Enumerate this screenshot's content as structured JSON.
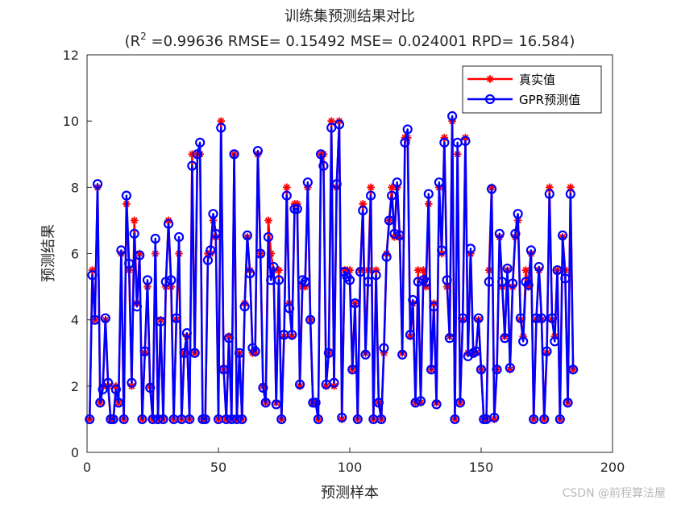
{
  "chart_data": {
    "type": "line",
    "title": "训练集预测结果对比",
    "subtitle": {
      "prefix": "(R",
      "sup": "2",
      "rest": " =0.99636 RMSE= 0.15492 MSE= 0.024001 RPD= 16.584)"
    },
    "xlabel": "预测样本",
    "ylabel": "预测结果",
    "xlim": [
      0,
      200
    ],
    "ylim": [
      0,
      12
    ],
    "xticks": [
      0,
      50,
      100,
      150,
      200
    ],
    "yticks": [
      0,
      2,
      4,
      6,
      8,
      10,
      12
    ],
    "grid": false,
    "legend_position": "top-right",
    "series": [
      {
        "name": "真实值",
        "color": "#ff0000",
        "marker": "asterisk",
        "values": [
          1.0,
          5.5,
          4.0,
          8.0,
          1.5,
          2.0,
          4.0,
          2.0,
          1.0,
          1.0,
          2.0,
          1.5,
          6.0,
          1.0,
          7.5,
          5.5,
          2.0,
          7.0,
          4.5,
          6.0,
          1.0,
          3.0,
          5.0,
          2.0,
          1.0,
          6.0,
          1.0,
          4.0,
          1.0,
          5.0,
          7.0,
          5.0,
          1.0,
          4.0,
          6.0,
          1.0,
          3.0,
          3.5,
          1.0,
          9.0,
          3.0,
          9.0,
          9.0,
          1.0,
          1.0,
          6.0,
          6.0,
          7.0,
          6.5,
          1.0,
          10.0,
          2.5,
          1.0,
          3.5,
          1.0,
          9.0,
          1.0,
          3.0,
          1.0,
          4.5,
          6.5,
          5.5,
          3.0,
          3.0,
          9.0,
          6.0,
          2.0,
          1.5,
          7.0,
          6.0,
          5.5,
          1.5,
          5.5,
          1.0,
          3.5,
          8.0,
          4.5,
          3.5,
          7.5,
          7.5,
          2.0,
          5.0,
          5.0,
          8.0,
          4.0,
          1.5,
          1.5,
          1.0,
          9.0,
          9.0,
          2.0,
          3.0,
          10.0,
          2.0,
          8.0,
          10.0,
          1.0,
          5.5,
          5.5,
          5.5,
          2.5,
          4.5,
          1.0,
          5.5,
          7.5,
          3.0,
          5.5,
          8.0,
          1.0,
          5.5,
          1.5,
          1.0,
          3.0,
          6.0,
          7.0,
          8.0,
          6.5,
          8.0,
          6.5,
          3.0,
          9.5,
          9.5,
          3.5,
          4.5,
          1.5,
          5.5,
          1.5,
          5.5,
          5.0,
          7.5,
          2.5,
          4.5,
          1.5,
          8.0,
          6.0,
          9.5,
          5.0,
          3.5,
          10.0,
          1.0,
          9.0,
          1.5,
          4.0,
          9.5,
          3.0,
          6.0,
          3.0,
          3.0,
          4.0,
          2.5,
          1.0,
          1.0,
          5.5,
          8.0,
          1.0,
          2.5,
          6.5,
          5.0,
          3.5,
          5.5,
          2.5,
          5.0,
          6.5,
          7.0,
          4.0,
          3.5,
          5.5,
          5.0,
          6.0,
          1.0,
          4.0,
          5.5,
          4.0,
          1.0,
          3.0,
          8.0,
          4.0,
          3.5,
          5.5,
          1.0,
          6.5,
          5.5,
          1.5,
          8.0,
          2.5
        ]
      },
      {
        "name": "GPR预测值",
        "color": "#0000ff",
        "marker": "circle",
        "values": [
          1.0,
          5.35,
          4.0,
          8.1,
          1.5,
          1.9,
          4.05,
          2.1,
          1.0,
          1.0,
          1.9,
          1.5,
          6.1,
          1.0,
          7.75,
          5.7,
          2.1,
          6.6,
          4.4,
          5.95,
          1.0,
          3.05,
          5.2,
          1.95,
          1.0,
          6.45,
          1.0,
          3.95,
          1.0,
          5.15,
          6.9,
          5.2,
          1.0,
          4.05,
          6.5,
          1.0,
          3.0,
          3.6,
          1.0,
          8.65,
          3.0,
          9.0,
          9.35,
          1.0,
          1.0,
          5.8,
          6.1,
          7.2,
          6.6,
          1.0,
          9.8,
          2.5,
          1.0,
          3.45,
          1.0,
          9.0,
          1.0,
          3.0,
          1.0,
          4.4,
          6.55,
          5.4,
          3.15,
          3.05,
          9.1,
          6.0,
          1.95,
          1.5,
          6.5,
          5.2,
          5.6,
          1.45,
          5.2,
          1.0,
          3.55,
          7.75,
          4.35,
          3.55,
          7.35,
          7.35,
          2.05,
          5.2,
          5.15,
          8.15,
          4.0,
          1.5,
          1.5,
          1.0,
          9.0,
          8.65,
          2.05,
          3.0,
          9.8,
          2.1,
          8.1,
          9.9,
          1.05,
          5.45,
          5.3,
          5.2,
          2.5,
          4.5,
          1.0,
          5.45,
          7.3,
          2.95,
          5.15,
          7.75,
          1.0,
          5.35,
          1.5,
          1.0,
          3.15,
          5.9,
          7.0,
          7.75,
          6.6,
          8.15,
          6.55,
          2.95,
          9.35,
          9.75,
          3.55,
          4.6,
          1.5,
          5.15,
          1.55,
          5.2,
          5.15,
          7.8,
          2.5,
          4.4,
          1.45,
          8.15,
          6.1,
          9.35,
          5.2,
          3.45,
          10.15,
          1.0,
          9.35,
          1.5,
          4.05,
          9.4,
          2.9,
          6.15,
          3.0,
          3.05,
          4.05,
          2.5,
          1.0,
          1.0,
          5.15,
          7.95,
          1.05,
          2.5,
          6.6,
          5.15,
          3.45,
          5.55,
          2.55,
          5.1,
          6.6,
          7.2,
          4.05,
          3.35,
          5.15,
          5.05,
          6.1,
          1.0,
          4.05,
          5.6,
          4.05,
          1.0,
          3.05,
          7.8,
          4.05,
          3.35,
          5.5,
          1.0,
          6.55,
          5.25,
          1.5,
          7.8,
          2.5
        ]
      }
    ]
  },
  "watermark": "CSDN @前程算法屋",
  "colors": {
    "axes": "#262626",
    "background": "#ffffff"
  }
}
